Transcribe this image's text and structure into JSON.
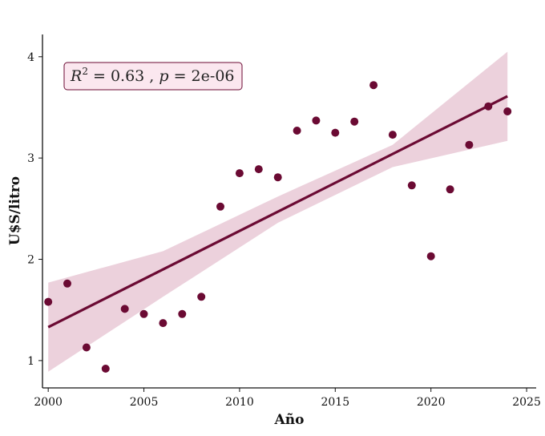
{
  "chart_data": {
    "type": "scatter",
    "title": "",
    "xlabel": "Año",
    "ylabel": "U$S/litro",
    "xlim": [
      1999.7,
      2025.5
    ],
    "ylim": [
      0.73,
      4.22
    ],
    "xticks": [
      2000,
      2005,
      2010,
      2015,
      2020,
      2025
    ],
    "yticks": [
      1,
      2,
      3,
      4
    ],
    "grid": false,
    "legend": "none",
    "colors": {
      "points": "#6b0a33",
      "line": "#6b0a33",
      "band": "#e9c9d6",
      "annotation_fill": "#fbe7ef",
      "annotation_border": "#6b0a33"
    },
    "points": [
      {
        "x": 2000,
        "y": 1.58
      },
      {
        "x": 2001,
        "y": 1.76
      },
      {
        "x": 2002,
        "y": 1.13
      },
      {
        "x": 2003,
        "y": 0.92
      },
      {
        "x": 2004,
        "y": 1.51
      },
      {
        "x": 2005,
        "y": 1.46
      },
      {
        "x": 2006,
        "y": 1.37
      },
      {
        "x": 2007,
        "y": 1.46
      },
      {
        "x": 2008,
        "y": 1.63
      },
      {
        "x": 2009,
        "y": 2.52
      },
      {
        "x": 2010,
        "y": 2.85
      },
      {
        "x": 2011,
        "y": 2.89
      },
      {
        "x": 2012,
        "y": 2.81
      },
      {
        "x": 2013,
        "y": 3.27
      },
      {
        "x": 2014,
        "y": 3.37
      },
      {
        "x": 2015,
        "y": 3.25
      },
      {
        "x": 2016,
        "y": 3.36
      },
      {
        "x": 2017,
        "y": 3.72
      },
      {
        "x": 2018,
        "y": 3.23
      },
      {
        "x": 2019,
        "y": 2.73
      },
      {
        "x": 2020,
        "y": 2.03
      },
      {
        "x": 2021,
        "y": 2.69
      },
      {
        "x": 2022,
        "y": 3.13
      },
      {
        "x": 2023,
        "y": 3.51
      },
      {
        "x": 2024,
        "y": 3.46
      }
    ],
    "regression": {
      "x": [
        2000,
        2024
      ],
      "y": [
        1.33,
        3.61
      ]
    },
    "confidence_band": {
      "x": [
        2000,
        2006,
        2012,
        2018,
        2024
      ],
      "lower": [
        0.89,
        1.63,
        2.36,
        2.91,
        3.17
      ],
      "upper": [
        1.77,
        2.08,
        2.62,
        3.13,
        4.05
      ]
    },
    "annotation": {
      "r_label": "R",
      "r_exp": "2",
      "r_value": " = 0.63 ,  ",
      "p_label": "p",
      "p_value": " = 2e-06"
    }
  }
}
